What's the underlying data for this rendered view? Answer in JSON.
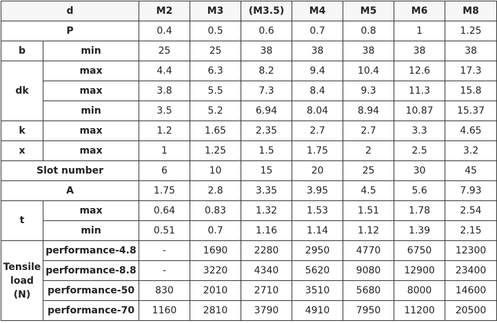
{
  "header": {
    "label": "d",
    "sizes": [
      "M2",
      "M3",
      "(M3.5)",
      "M4",
      "M5",
      "M6",
      "M8"
    ]
  },
  "rows": {
    "p": {
      "label": "P",
      "values": [
        "0.4",
        "0.5",
        "0.6",
        "0.7",
        "0.8",
        "1",
        "1.25"
      ]
    },
    "b_min": {
      "label": "b",
      "sub": "min",
      "values": [
        "25",
        "25",
        "38",
        "38",
        "38",
        "38",
        "38"
      ]
    },
    "dk_max1": {
      "label": "dk",
      "sub": "max",
      "values": [
        "4.4",
        "6.3",
        "8.2",
        "9.4",
        "10.4",
        "12.6",
        "17.3"
      ]
    },
    "dk_max2": {
      "sub": "max",
      "values": [
        "3.8",
        "5.5",
        "7.3",
        "8.4",
        "9.3",
        "11.3",
        "15.8"
      ]
    },
    "dk_min": {
      "sub": "min",
      "values": [
        "3.5",
        "5.2",
        "6.94",
        "8.04",
        "8.94",
        "10.87",
        "15.37"
      ]
    },
    "k_max": {
      "label": "k",
      "sub": "max",
      "values": [
        "1.2",
        "1.65",
        "2.35",
        "2.7",
        "2.7",
        "3.3",
        "4.65"
      ]
    },
    "x_max": {
      "label": "x",
      "sub": "max",
      "values": [
        "1",
        "1.25",
        "1.5",
        "1.75",
        "2",
        "2.5",
        "3.2"
      ]
    },
    "slot": {
      "label": "Slot number",
      "values": [
        "6",
        "10",
        "15",
        "20",
        "25",
        "30",
        "45"
      ]
    },
    "a": {
      "label": "A",
      "values": [
        "1.75",
        "2.8",
        "3.35",
        "3.95",
        "4.5",
        "5.6",
        "7.93"
      ]
    },
    "t_max": {
      "label": "t",
      "sub": "max",
      "values": [
        "0.64",
        "0.83",
        "1.32",
        "1.53",
        "1.51",
        "1.78",
        "2.54"
      ]
    },
    "t_min": {
      "sub": "min",
      "values": [
        "0.51",
        "0.7",
        "1.16",
        "1.14",
        "1.12",
        "1.39",
        "2.15"
      ]
    },
    "tl_48": {
      "label_lines": [
        "Tensile",
        "load",
        "(N)"
      ],
      "sub": "performance-4.8",
      "values": [
        "-",
        "1690",
        "2280",
        "2950",
        "4770",
        "6750",
        "12300"
      ]
    },
    "tl_88": {
      "sub": "performance-8.8",
      "values": [
        "-",
        "3220",
        "4340",
        "5620",
        "9080",
        "12900",
        "23400"
      ]
    },
    "tl_50": {
      "sub": "performance-50",
      "values": [
        "830",
        "2010",
        "2710",
        "3510",
        "5680",
        "8000",
        "14600"
      ]
    },
    "tl_70": {
      "sub": "performance-70",
      "values": [
        "1160",
        "2810",
        "3790",
        "4910",
        "7950",
        "11200",
        "20500"
      ]
    }
  }
}
